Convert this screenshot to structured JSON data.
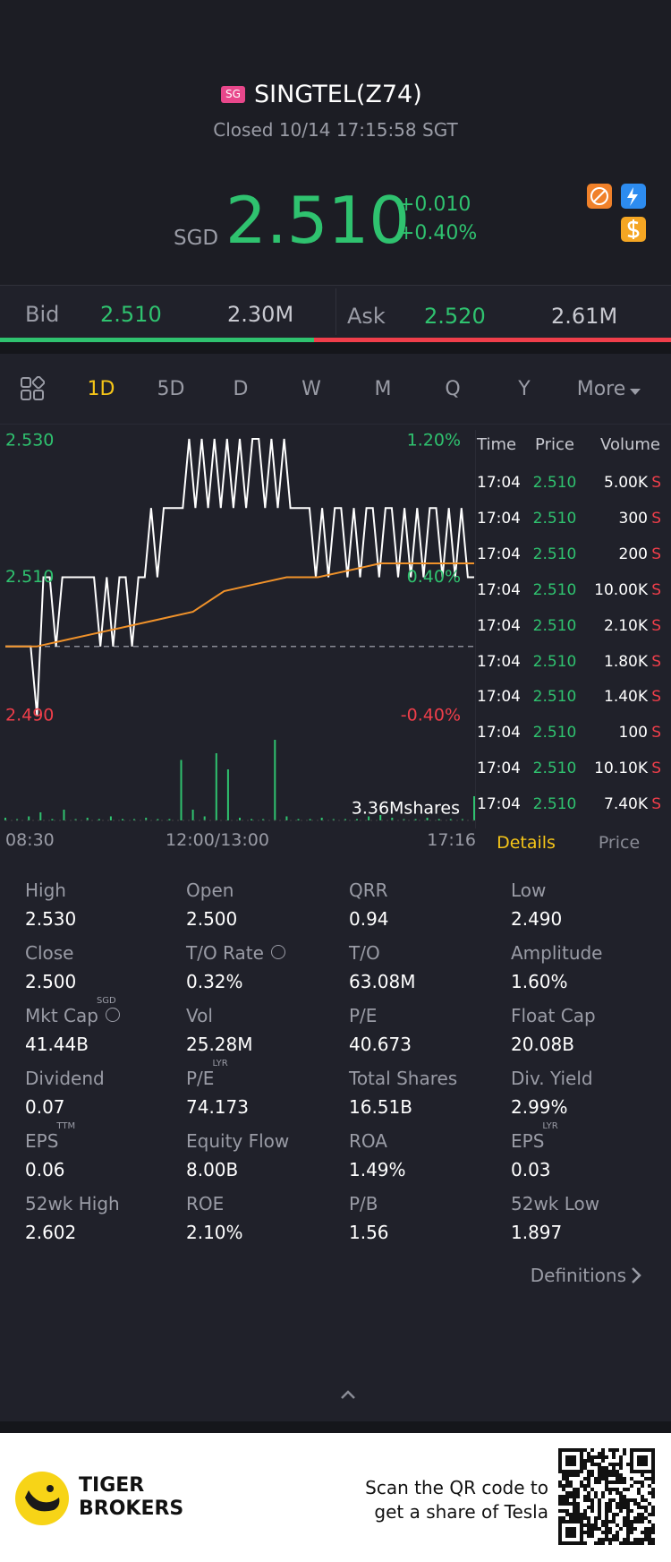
{
  "header": {
    "market_badge": "SG",
    "title": "SINGTEL(Z74)",
    "status": "Closed 10/14 17:15:58 SGT"
  },
  "quote": {
    "currency": "SGD",
    "price": "2.510",
    "change": "+0.010",
    "change_pct": "+0.40%"
  },
  "bid_ask": {
    "bid_label": "Bid",
    "bid_price": "2.510",
    "bid_size": "2.30M",
    "ask_label": "Ask",
    "ask_price": "2.520",
    "ask_size": "2.61M"
  },
  "tabs": [
    "1D",
    "5D",
    "D",
    "W",
    "M",
    "Q",
    "Y",
    "More"
  ],
  "chart": {
    "ylim": [
      2.49,
      2.53
    ],
    "yticks": [
      {
        "value": 2.53,
        "label": "2.530"
      },
      {
        "value": 2.51,
        "label": "2.510"
      },
      {
        "value": 2.49,
        "label": "2.490"
      }
    ],
    "y2ticks": [
      {
        "value": 2.53,
        "label": "1.20%"
      },
      {
        "value": 2.51,
        "label": "0.40%"
      },
      {
        "value": 2.49,
        "label": "-0.40%"
      }
    ],
    "prev_close": 2.5,
    "xlabels": [
      "08:30",
      "12:00/13:00",
      "17:16"
    ],
    "price": [
      2.5,
      2.5,
      2.5,
      2.5,
      2.5,
      2.49,
      2.51,
      2.51,
      2.5,
      2.51,
      2.51,
      2.51,
      2.51,
      2.51,
      2.51,
      2.5,
      2.51,
      2.5,
      2.51,
      2.51,
      2.5,
      2.51,
      2.51,
      2.52,
      2.51,
      2.52,
      2.52,
      2.52,
      2.52,
      2.53,
      2.52,
      2.53,
      2.52,
      2.53,
      2.52,
      2.53,
      2.52,
      2.53,
      2.52,
      2.53,
      2.53,
      2.52,
      2.53,
      2.52,
      2.53,
      2.52,
      2.52,
      2.52,
      2.52,
      2.51,
      2.52,
      2.51,
      2.52,
      2.52,
      2.51,
      2.52,
      2.51,
      2.52,
      2.52,
      2.51,
      2.52,
      2.52,
      2.51,
      2.52,
      2.51,
      2.52,
      2.51,
      2.52,
      2.52,
      2.51,
      2.52,
      2.51,
      2.52,
      2.51,
      2.51
    ],
    "avg": [
      2.5,
      2.5,
      2.501,
      2.502,
      2.503,
      2.504,
      2.505,
      2.508,
      2.509,
      2.51,
      2.51,
      2.511,
      2.512,
      2.512,
      2.512,
      2.512
    ],
    "volume": [
      2,
      1,
      3,
      6,
      1,
      8,
      1,
      2,
      1,
      3,
      1,
      1,
      2,
      1,
      1,
      45,
      8,
      3,
      50,
      38,
      2,
      1,
      1,
      60,
      3,
      1,
      1,
      2,
      1,
      1,
      1,
      3,
      4,
      2,
      1,
      1,
      2,
      1,
      1,
      1,
      18
    ],
    "volume_label": "3.36Mshares"
  },
  "trades": {
    "headers": [
      "Time",
      "Price",
      "Volume"
    ],
    "rows": [
      [
        "17:04",
        "2.510",
        "5.00K",
        "S"
      ],
      [
        "17:04",
        "2.510",
        "300",
        "S"
      ],
      [
        "17:04",
        "2.510",
        "200",
        "S"
      ],
      [
        "17:04",
        "2.510",
        "10.00K",
        "S"
      ],
      [
        "17:04",
        "2.510",
        "2.10K",
        "S"
      ],
      [
        "17:04",
        "2.510",
        "1.80K",
        "S"
      ],
      [
        "17:04",
        "2.510",
        "1.40K",
        "S"
      ],
      [
        "17:04",
        "2.510",
        "100",
        "S"
      ],
      [
        "17:04",
        "2.510",
        "10.10K",
        "S"
      ],
      [
        "17:04",
        "2.510",
        "7.40K",
        "S"
      ]
    ]
  },
  "detail_tabs": [
    "Details",
    "Price"
  ],
  "details": [
    {
      "label": "High",
      "value": "2.530"
    },
    {
      "label": "Open",
      "value": "2.500"
    },
    {
      "label": "QRR",
      "value": "0.94"
    },
    {
      "label": "Low",
      "value": "2.490"
    },
    {
      "label": "Close",
      "value": "2.500"
    },
    {
      "label": "T/O Rate",
      "value": "0.32%",
      "info": true
    },
    {
      "label": "T/O",
      "value": "63.08M"
    },
    {
      "label": "Amplitude",
      "value": "1.60%"
    },
    {
      "label": "Mkt Cap",
      "sup": "SGD",
      "value": "41.44B",
      "info": true
    },
    {
      "label": "Vol",
      "value": "25.28M"
    },
    {
      "label": "P/E",
      "value": "40.673"
    },
    {
      "label": "Float Cap",
      "value": "20.08B"
    },
    {
      "label": "Dividend",
      "value": "0.07"
    },
    {
      "label": "P/E",
      "sup": "LYR",
      "value": "74.173"
    },
    {
      "label": "Total Shares",
      "value": "16.51B"
    },
    {
      "label": "Div. Yield",
      "value": "2.99%"
    },
    {
      "label": "EPS",
      "sup": "TTM",
      "value": "0.06"
    },
    {
      "label": "Equity Flow",
      "value": "8.00B"
    },
    {
      "label": "ROA",
      "value": "1.49%"
    },
    {
      "label": "EPS",
      "sup": "LYR",
      "value": "0.03"
    },
    {
      "label": "52wk High",
      "value": "2.602"
    },
    {
      "label": "ROE",
      "value": "2.10%"
    },
    {
      "label": "P/B",
      "value": "1.56"
    },
    {
      "label": "52wk Low",
      "value": "1.897"
    }
  ],
  "definitions": "Definitions",
  "footer": {
    "brand": [
      "TIGER",
      "BROKERS"
    ],
    "cta": [
      "Scan the QR code to",
      "get a share of Tesla"
    ]
  }
}
